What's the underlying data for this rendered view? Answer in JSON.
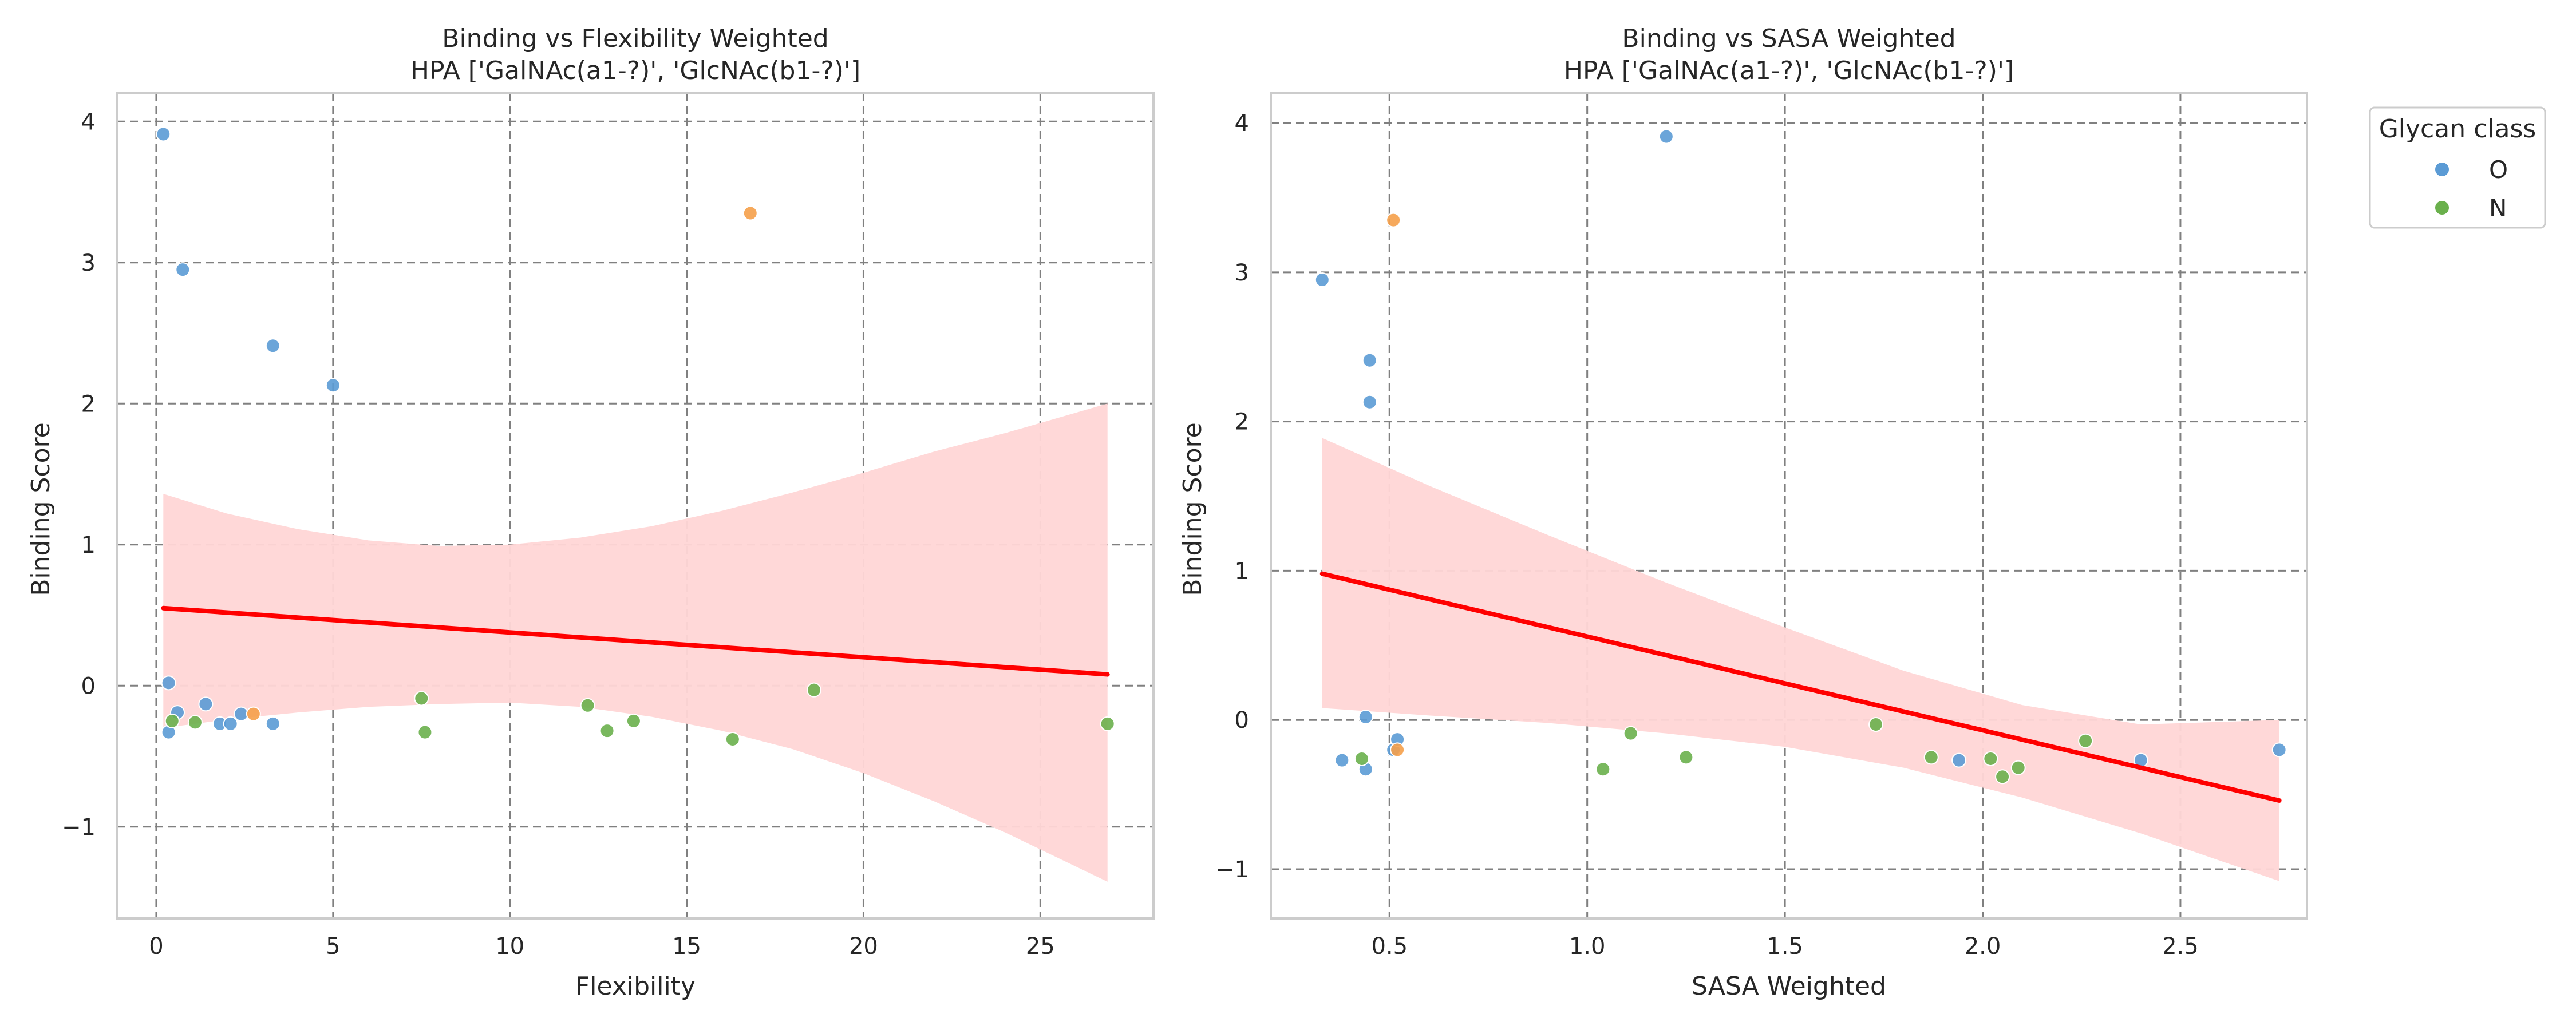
{
  "chart_data": [
    {
      "type": "scatter",
      "title": "Binding vs Flexibility Weighted\nHPA ['GalNAc(a1-?)', 'GlcNAc(b1-?)']",
      "title_lines": [
        "Binding vs Flexibility Weighted",
        "HPA ['GalNAc(a1-?)', 'GlcNAc(b1-?)']"
      ],
      "xlabel": "Flexibility",
      "ylabel": "Binding Score",
      "xlim": [
        -1.1,
        28.2
      ],
      "ylim": [
        -1.65,
        4.2
      ],
      "xticks": [
        0,
        5,
        10,
        15,
        20,
        25
      ],
      "yticks": [
        -1,
        0,
        1,
        2,
        3,
        4
      ],
      "xtick_labels": [
        "0",
        "5",
        "10",
        "15",
        "20",
        "25"
      ],
      "ytick_labels": [
        "−1",
        "0",
        "1",
        "2",
        "3",
        "4"
      ],
      "grid": true,
      "series": [
        {
          "name": "O",
          "color": "#5b9bd5",
          "points": [
            [
              0.2,
              3.91
            ],
            [
              0.75,
              2.95
            ],
            [
              3.3,
              2.41
            ],
            [
              5.0,
              2.13
            ],
            [
              0.35,
              0.02
            ],
            [
              0.35,
              -0.33
            ],
            [
              0.6,
              -0.19
            ],
            [
              1.4,
              -0.13
            ],
            [
              1.8,
              -0.27
            ],
            [
              2.1,
              -0.27
            ],
            [
              2.4,
              -0.2
            ],
            [
              3.3,
              -0.27
            ]
          ]
        },
        {
          "name": "N",
          "color": "#6ab04c",
          "points": [
            [
              0.45,
              -0.25
            ],
            [
              1.1,
              -0.26
            ],
            [
              7.5,
              -0.09
            ],
            [
              7.6,
              -0.33
            ],
            [
              12.2,
              -0.14
            ],
            [
              12.75,
              -0.32
            ],
            [
              13.5,
              -0.25
            ],
            [
              16.3,
              -0.38
            ],
            [
              18.6,
              -0.03
            ],
            [
              26.9,
              -0.27
            ]
          ]
        },
        {
          "name": "",
          "color": "#f5a04a",
          "points": [
            [
              16.8,
              3.35
            ],
            [
              2.75,
              -0.2
            ]
          ]
        }
      ],
      "regression": {
        "color": "#ff0000",
        "x": [
          0.2,
          26.9
        ],
        "y": [
          0.55,
          0.08
        ]
      },
      "confidence_band": {
        "color": "#ffd6d6",
        "x": [
          0.2,
          2,
          4,
          6,
          8,
          10,
          12,
          14,
          16,
          18,
          20,
          22,
          24,
          26.9
        ],
        "lower": [
          -0.3,
          -0.24,
          -0.19,
          -0.15,
          -0.13,
          -0.12,
          -0.15,
          -0.22,
          -0.32,
          -0.45,
          -0.62,
          -0.82,
          -1.04,
          -1.39
        ],
        "upper": [
          1.36,
          1.22,
          1.11,
          1.03,
          0.99,
          1.0,
          1.05,
          1.13,
          1.24,
          1.37,
          1.51,
          1.66,
          1.79,
          2.0
        ]
      }
    },
    {
      "type": "scatter",
      "title": "Binding vs SASA Weighted\nHPA ['GalNAc(a1-?)', 'GlcNAc(b1-?)']",
      "title_lines": [
        "Binding vs SASA Weighted",
        "HPA ['GalNAc(a1-?)', 'GlcNAc(b1-?)']"
      ],
      "xlabel": "SASA Weighted",
      "ylabel": "Binding Score",
      "xlim": [
        0.2,
        2.82
      ],
      "ylim": [
        -1.33,
        4.2
      ],
      "xticks": [
        0.5,
        1.0,
        1.5,
        2.0,
        2.5
      ],
      "yticks": [
        -1,
        0,
        1,
        2,
        3,
        4
      ],
      "xtick_labels": [
        "0.5",
        "1.0",
        "1.5",
        "2.0",
        "2.5"
      ],
      "ytick_labels": [
        "−1",
        "0",
        "1",
        "2",
        "3",
        "4"
      ],
      "grid": true,
      "series": [
        {
          "name": "O",
          "color": "#5b9bd5",
          "points": [
            [
              1.2,
              3.91
            ],
            [
              0.33,
              2.95
            ],
            [
              0.45,
              2.41
            ],
            [
              0.45,
              2.13
            ],
            [
              0.44,
              0.02
            ],
            [
              0.38,
              -0.27
            ],
            [
              0.44,
              -0.33
            ],
            [
              0.51,
              -0.2
            ],
            [
              0.52,
              -0.13
            ],
            [
              1.94,
              -0.27
            ],
            [
              2.4,
              -0.27
            ],
            [
              2.75,
              -0.2
            ]
          ]
        },
        {
          "name": "N",
          "color": "#6ab04c",
          "points": [
            [
              0.43,
              -0.26
            ],
            [
              1.04,
              -0.33
            ],
            [
              1.11,
              -0.09
            ],
            [
              1.25,
              -0.25
            ],
            [
              1.73,
              -0.03
            ],
            [
              1.87,
              -0.25
            ],
            [
              2.02,
              -0.26
            ],
            [
              2.05,
              -0.38
            ],
            [
              2.09,
              -0.32
            ],
            [
              2.26,
              -0.14
            ]
          ]
        },
        {
          "name": "",
          "color": "#f5a04a",
          "points": [
            [
              0.51,
              3.35
            ],
            [
              0.52,
              -0.2
            ]
          ]
        }
      ],
      "regression": {
        "color": "#ff0000",
        "x": [
          0.33,
          2.75
        ],
        "y": [
          0.98,
          -0.54
        ]
      },
      "confidence_band": {
        "color": "#ffd6d6",
        "x": [
          0.33,
          0.6,
          0.9,
          1.2,
          1.5,
          1.8,
          2.1,
          2.4,
          2.75
        ],
        "lower": [
          0.08,
          0.03,
          -0.02,
          -0.09,
          -0.18,
          -0.32,
          -0.52,
          -0.76,
          -1.08
        ],
        "upper": [
          1.89,
          1.57,
          1.24,
          0.92,
          0.62,
          0.33,
          0.1,
          -0.03,
          0.0
        ]
      }
    }
  ],
  "legend": {
    "title": "Glycan class",
    "placement": "outside-right",
    "items": [
      {
        "label": "O",
        "color": "#5b9bd5"
      },
      {
        "label": "N",
        "color": "#6ab04c"
      }
    ]
  },
  "colors": {
    "grid": "#808080",
    "axes": "#cccccc",
    "regression": "#ff0000",
    "band": "#ffd6d6"
  }
}
